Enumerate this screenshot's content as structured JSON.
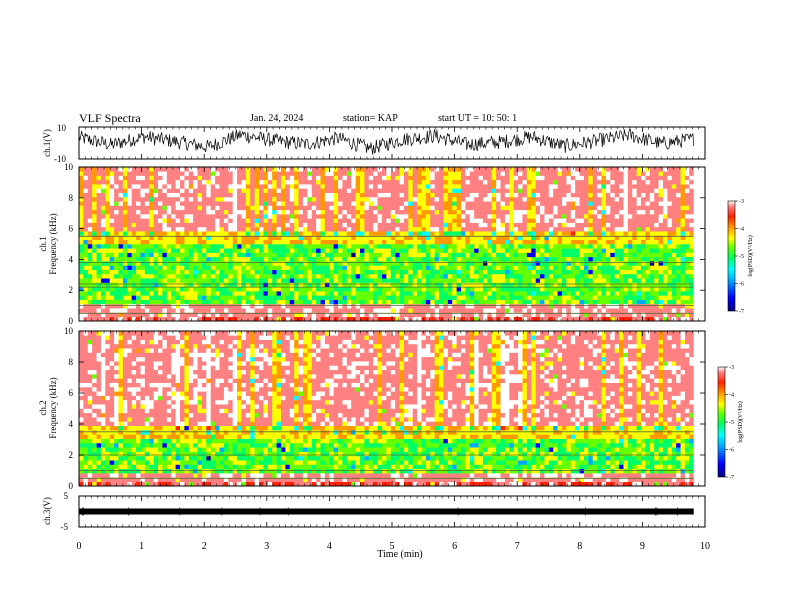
{
  "header": {
    "title": "VLF Spectra",
    "date": "Jan. 24, 2024",
    "station": "station= KAP",
    "start_ut": "start  UT  =   10: 50: 1"
  },
  "colors": {
    "waveform": "#000000",
    "colormap": [
      "#000080",
      "#0000ff",
      "#00aaff",
      "#00ffff",
      "#00ff66",
      "#66ff00",
      "#ffff00",
      "#ff9900",
      "#ff2200",
      "#ff8080",
      "#ffffff"
    ]
  },
  "chart_data": [
    {
      "type": "line",
      "panel": "ch1-waveform",
      "ylabel": "ch.1(V)",
      "ylim": [
        -10,
        10
      ],
      "yticks": [
        "10",
        "-10"
      ],
      "x_range_min": [
        0,
        9.82
      ],
      "series": [
        {
          "values": [
            3.5,
            -1.2,
            4.0,
            0.8,
            -2.5,
            5.2,
            1.5,
            -0.8,
            3.0,
            -3.5,
            2.2,
            4.5,
            -1.0,
            0.5,
            3.8,
            -2.0,
            1.2,
            5.0,
            -0.5,
            2.5
          ]
        }
      ]
    },
    {
      "type": "heatmap",
      "panel": "ch1-spectrogram",
      "ylabel": "ch.1\nFrequency (kHz)",
      "ylim": [
        0,
        10
      ],
      "yticks": [
        "0",
        "2",
        "4",
        "6",
        "8",
        "10"
      ],
      "colorbar": {
        "label": "log(PSD)(V²/Hz)",
        "range": [
          -7,
          -3
        ],
        "ticks": [
          "-3",
          "-4",
          "-5",
          "-6",
          "-7"
        ]
      },
      "lines_khz": [
        0.5,
        1.0,
        2.2,
        2.4,
        3.8,
        5.5
      ],
      "mid_band_khz": [
        1.0,
        5.0
      ]
    },
    {
      "type": "heatmap",
      "panel": "ch2-spectrogram",
      "ylabel": "ch.2\nFrequency (kHz)",
      "ylim": [
        0,
        10
      ],
      "yticks": [
        "0",
        "2",
        "4",
        "6",
        "8",
        "10"
      ],
      "colorbar": {
        "label": "log(PSD)(V²/Hz)",
        "range": [
          -7,
          -3
        ],
        "ticks": [
          "-3",
          "-4",
          "-5",
          "-6",
          "-7"
        ]
      },
      "lines_khz": [
        0.5,
        1.0,
        2.0,
        3.5
      ],
      "mid_band_khz": [
        0.8,
        3.0
      ]
    },
    {
      "type": "line",
      "panel": "ch3-waveform",
      "ylabel": "ch.3(V)",
      "ylim": [
        -5,
        5
      ],
      "yticks": [
        "5",
        "0",
        "-5"
      ],
      "series": [
        {
          "values": [
            0,
            0
          ]
        }
      ]
    }
  ],
  "xaxis": {
    "label": "Time (min)",
    "range": [
      0,
      10
    ],
    "ticks": [
      "0",
      "1",
      "2",
      "3",
      "4",
      "5",
      "6",
      "7",
      "8",
      "9",
      "10"
    ]
  }
}
